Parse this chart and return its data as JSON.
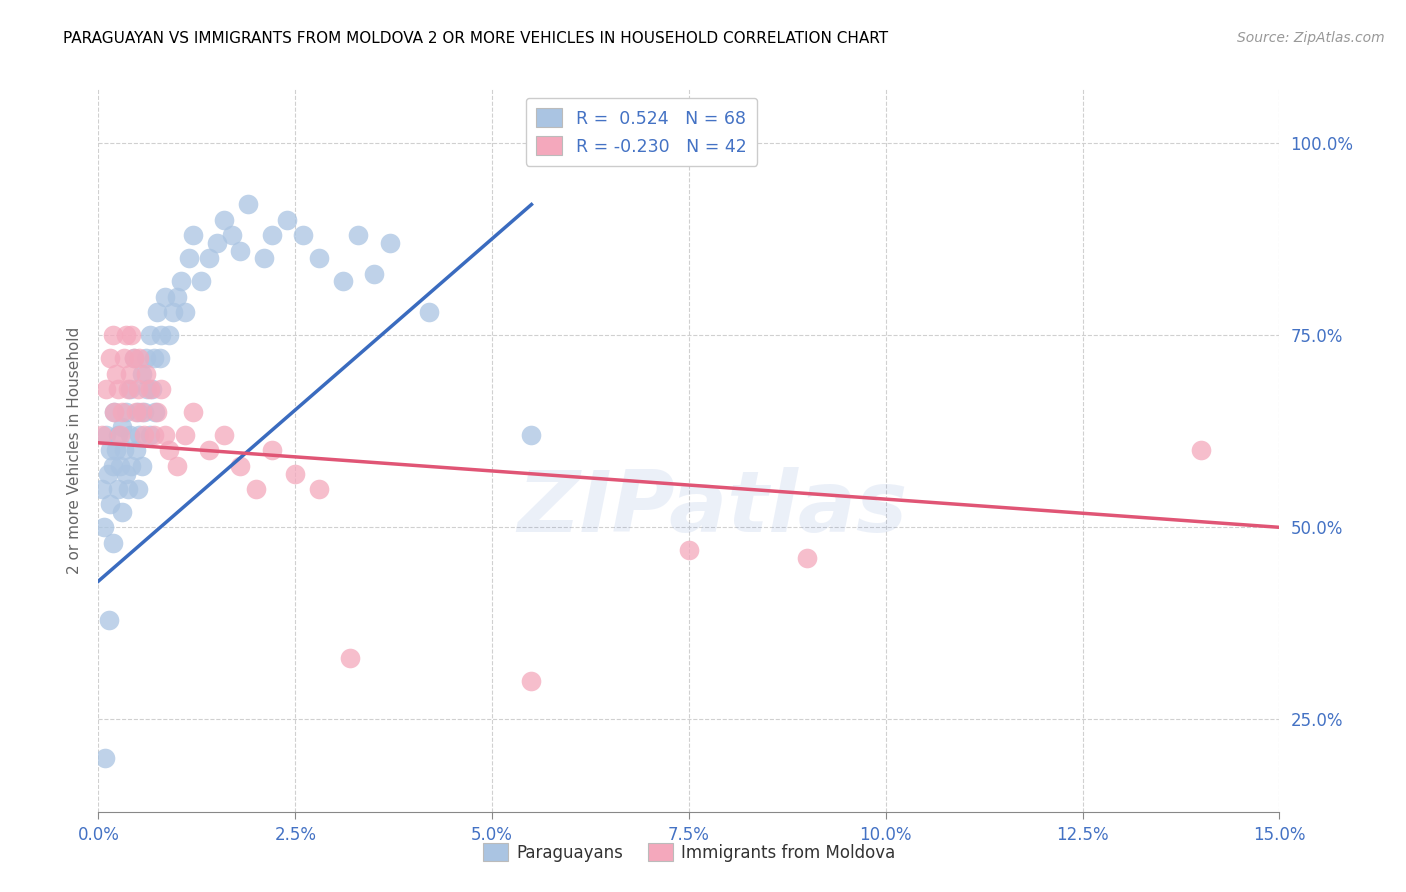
{
  "title": "PARAGUAYAN VS IMMIGRANTS FROM MOLDOVA 2 OR MORE VEHICLES IN HOUSEHOLD CORRELATION CHART",
  "source": "Source: ZipAtlas.com",
  "ylabel": "2 or more Vehicles in Household",
  "xlim": [
    0.0,
    15.0
  ],
  "ylim": [
    13.0,
    107.0
  ],
  "blue_R": 0.524,
  "blue_N": 68,
  "pink_R": -0.23,
  "pink_N": 42,
  "blue_color": "#aac4e2",
  "pink_color": "#f4a8bc",
  "blue_line_color": "#3a6bbf",
  "pink_line_color": "#e05575",
  "legend_label_blue": "Paraguayans",
  "legend_label_pink": "Immigrants from Moldova",
  "watermark": "ZIPatlas",
  "xtick_vals": [
    0.0,
    2.5,
    5.0,
    7.5,
    10.0,
    12.5,
    15.0
  ],
  "ytick_vals": [
    25.0,
    50.0,
    75.0,
    100.0
  ],
  "blue_line_x0": 0.0,
  "blue_line_y0": 43.0,
  "blue_line_x1": 5.5,
  "blue_line_y1": 92.0,
  "pink_line_x0": 0.0,
  "pink_line_y0": 61.0,
  "pink_line_x1": 15.0,
  "pink_line_y1": 50.0,
  "blue_pts_x": [
    0.05,
    0.07,
    0.1,
    0.12,
    0.15,
    0.15,
    0.18,
    0.18,
    0.2,
    0.22,
    0.25,
    0.25,
    0.28,
    0.3,
    0.3,
    0.32,
    0.35,
    0.35,
    0.38,
    0.4,
    0.4,
    0.42,
    0.45,
    0.48,
    0.5,
    0.5,
    0.52,
    0.55,
    0.55,
    0.58,
    0.6,
    0.62,
    0.65,
    0.65,
    0.68,
    0.7,
    0.72,
    0.75,
    0.78,
    0.8,
    0.85,
    0.9,
    0.95,
    1.0,
    1.05,
    1.1,
    1.15,
    1.2,
    1.3,
    1.4,
    1.5,
    1.6,
    1.7,
    1.8,
    1.9,
    2.1,
    2.2,
    2.4,
    2.6,
    2.8,
    3.1,
    3.3,
    3.5,
    3.7,
    4.2,
    5.5,
    0.08,
    0.13
  ],
  "blue_pts_y": [
    55,
    50,
    62,
    57,
    60,
    53,
    58,
    48,
    65,
    60,
    62,
    55,
    58,
    63,
    52,
    60,
    65,
    57,
    55,
    68,
    62,
    58,
    72,
    60,
    65,
    55,
    62,
    70,
    58,
    65,
    72,
    68,
    75,
    62,
    68,
    72,
    65,
    78,
    72,
    75,
    80,
    75,
    78,
    80,
    82,
    78,
    85,
    88,
    82,
    85,
    87,
    90,
    88,
    86,
    92,
    85,
    88,
    90,
    88,
    85,
    82,
    88,
    83,
    87,
    78,
    62,
    20,
    38
  ],
  "pink_pts_x": [
    0.05,
    0.1,
    0.15,
    0.18,
    0.2,
    0.22,
    0.25,
    0.28,
    0.3,
    0.32,
    0.35,
    0.38,
    0.4,
    0.42,
    0.45,
    0.48,
    0.5,
    0.52,
    0.55,
    0.58,
    0.6,
    0.65,
    0.7,
    0.75,
    0.8,
    0.85,
    0.9,
    1.0,
    1.1,
    1.2,
    1.4,
    1.6,
    1.8,
    2.0,
    2.2,
    2.5,
    2.8,
    3.2,
    7.5,
    9.0,
    14.0,
    5.5
  ],
  "pink_pts_y": [
    62,
    68,
    72,
    75,
    65,
    70,
    68,
    62,
    65,
    72,
    75,
    68,
    70,
    75,
    72,
    65,
    68,
    72,
    65,
    62,
    70,
    68,
    62,
    65,
    68,
    62,
    60,
    58,
    62,
    65,
    60,
    62,
    58,
    55,
    60,
    57,
    55,
    33,
    47,
    46,
    60,
    30
  ]
}
